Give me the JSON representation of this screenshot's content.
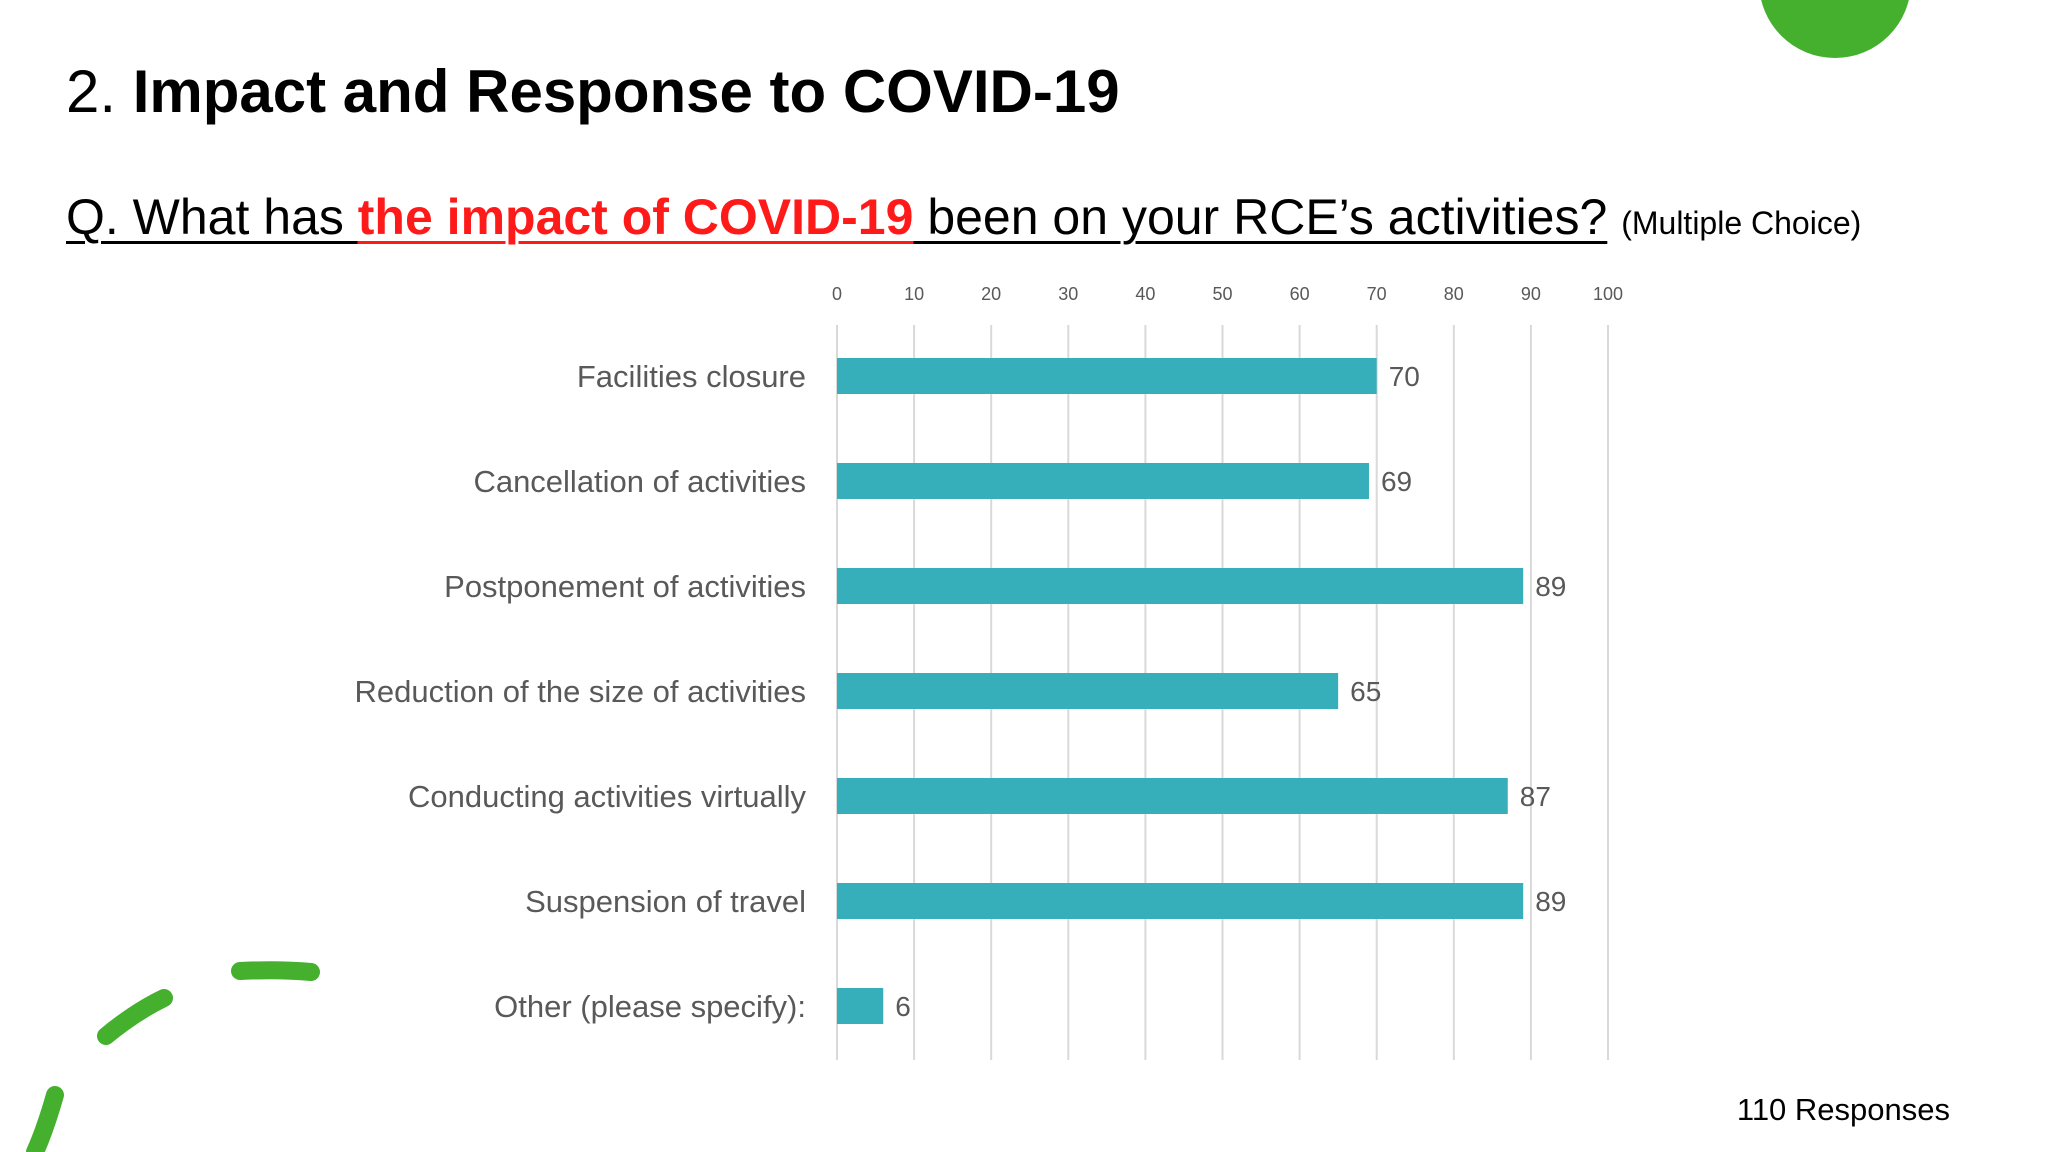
{
  "slide": {
    "title_number": "2.",
    "title_text": "Impact and Response to COVID-19",
    "question_prefix": "Q. What has ",
    "question_highlight": "the impact of COVID-19",
    "question_suffix": " been on your RCE’s activities?",
    "question_note": "(Multiple Choice)",
    "responses": "110 Responses"
  },
  "colors": {
    "bar": "#36afbb",
    "highlight": "#ff1a1a",
    "decoration": "#44b02e",
    "gridline": "#d9d9d9",
    "axis_label": "#595959"
  },
  "chart_data": {
    "type": "bar",
    "orientation": "horizontal",
    "categories": [
      "Facilities closure",
      "Cancellation of activities",
      "Postponement of activities",
      "Reduction of the size of activities",
      "Conducting activities virtually",
      "Suspension of travel",
      "Other (please specify):"
    ],
    "values": [
      70,
      69,
      89,
      65,
      87,
      89,
      6
    ],
    "xlim": [
      0,
      100
    ],
    "xticks": [
      0,
      10,
      20,
      30,
      40,
      50,
      60,
      70,
      80,
      90,
      100
    ],
    "xaxis_position": "top",
    "grid": true,
    "data_labels": true,
    "legend": "none"
  }
}
